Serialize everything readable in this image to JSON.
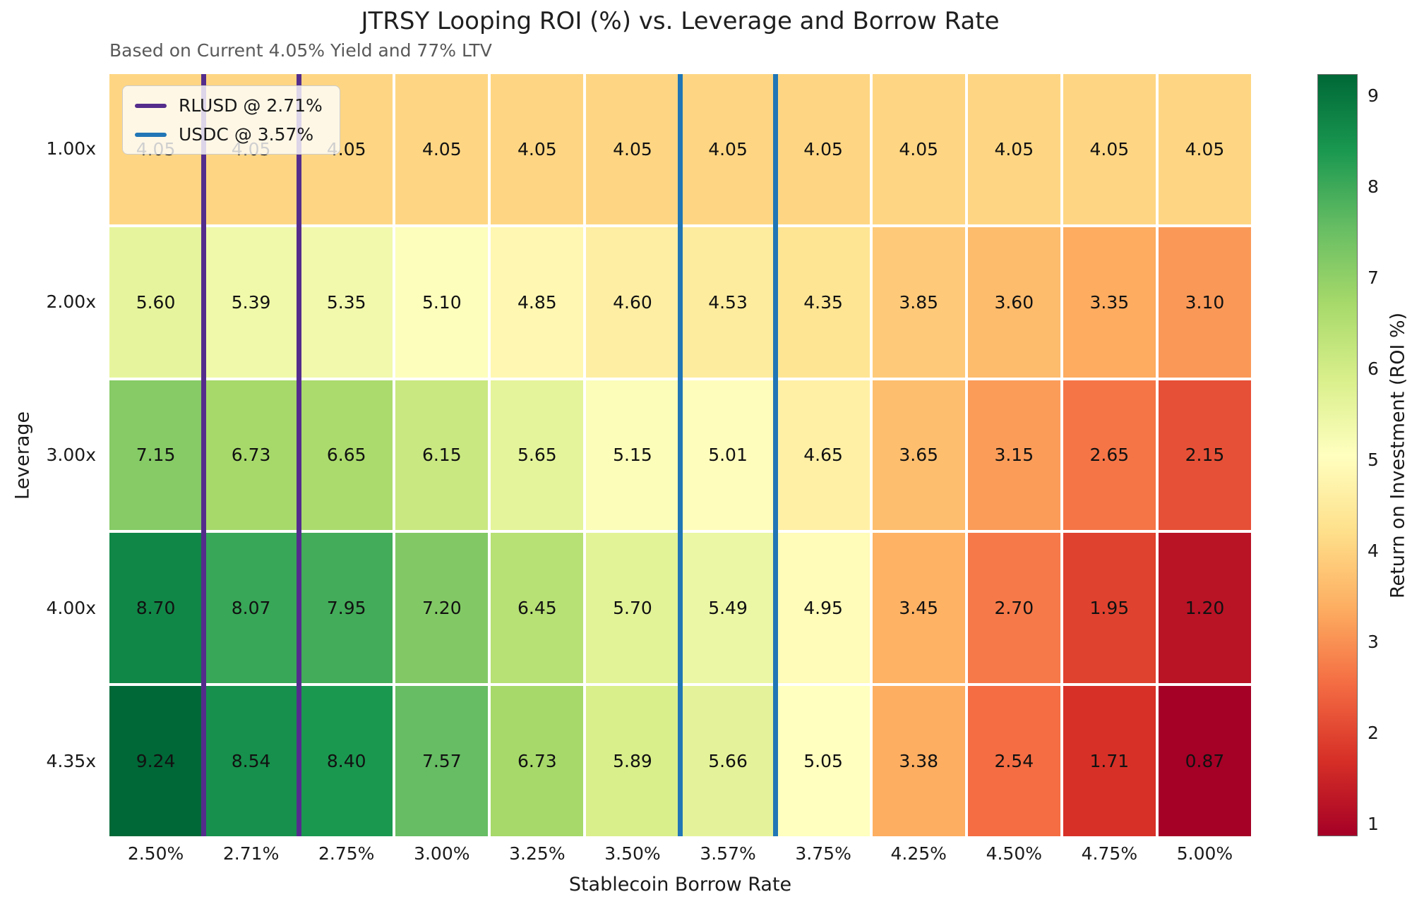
{
  "chart_data": {
    "type": "heatmap",
    "title": "JTRSY Looping ROI (%) vs. Leverage and Borrow Rate",
    "subtitle": "Based on Current 4.05% Yield and 77% LTV",
    "xlabel": "Stablecoin Borrow Rate",
    "ylabel": "Leverage",
    "x_ticklabels": [
      "2.50%",
      "2.71%",
      "2.75%",
      "3.00%",
      "3.25%",
      "3.50%",
      "3.57%",
      "3.75%",
      "4.25%",
      "4.50%",
      "4.75%",
      "5.00%"
    ],
    "y_ticklabels": [
      "1.00x",
      "2.00x",
      "3.00x",
      "4.00x",
      "4.35x"
    ],
    "values": [
      [
        4.05,
        4.05,
        4.05,
        4.05,
        4.05,
        4.05,
        4.05,
        4.05,
        4.05,
        4.05,
        4.05,
        4.05
      ],
      [
        5.6,
        5.39,
        5.35,
        5.1,
        4.85,
        4.6,
        4.53,
        4.35,
        3.85,
        3.6,
        3.35,
        3.1
      ],
      [
        7.15,
        6.73,
        6.65,
        6.15,
        5.65,
        5.15,
        5.01,
        4.65,
        3.65,
        3.15,
        2.65,
        2.15
      ],
      [
        8.7,
        8.07,
        7.95,
        7.2,
        6.45,
        5.7,
        5.49,
        4.95,
        3.45,
        2.7,
        1.95,
        1.2
      ],
      [
        9.24,
        8.54,
        8.4,
        7.57,
        6.73,
        5.89,
        5.66,
        5.05,
        3.38,
        2.54,
        1.71,
        0.87
      ]
    ],
    "vmin": 0.87,
    "vmax": 9.24,
    "colormap": "RdYlGn",
    "colormap_stops": [
      [
        0.0,
        "#a50026"
      ],
      [
        0.1,
        "#d73027"
      ],
      [
        0.2,
        "#f46d43"
      ],
      [
        0.3,
        "#fdae61"
      ],
      [
        0.4,
        "#fee08b"
      ],
      [
        0.5,
        "#ffffbf"
      ],
      [
        0.6,
        "#d9ef8b"
      ],
      [
        0.7,
        "#a6d96a"
      ],
      [
        0.8,
        "#66bd63"
      ],
      [
        0.9,
        "#1a9850"
      ],
      [
        1.0,
        "#006837"
      ]
    ],
    "colorbar": {
      "label": "Return on Investment (ROI %)",
      "ticks": [
        1,
        2,
        3,
        4,
        5,
        6,
        7,
        8,
        9
      ],
      "position": "right"
    },
    "legend": [
      {
        "id": "rlusd",
        "label": "RLUSD @ 2.71%",
        "color": "#542d8c",
        "column": "2.71%"
      },
      {
        "id": "usdc",
        "label": "USDC @ 3.57%",
        "color": "#2176b5",
        "column": "3.57%"
      }
    ],
    "legend_position": "upper left",
    "annotations_color": "#111111",
    "cell_gap_color": "#ffffff"
  }
}
